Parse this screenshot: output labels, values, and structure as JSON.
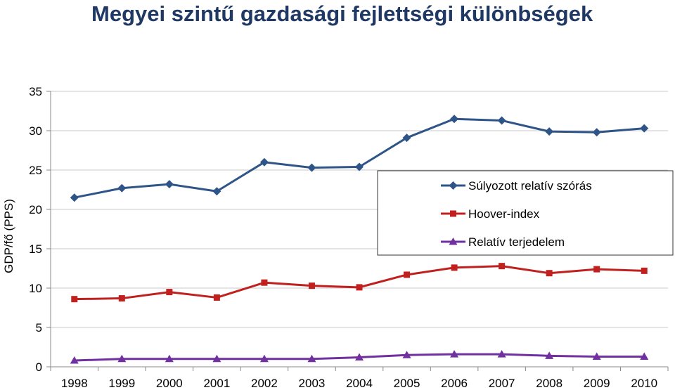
{
  "slide": {
    "title": "Megyei szintű gazdasági fejlettségi különbségek"
  },
  "chart_data": {
    "type": "line",
    "title": "",
    "xlabel": "",
    "ylabel": "GDP/fő (PPS)",
    "ylim": [
      0,
      35
    ],
    "yticks": [
      "0",
      "5",
      "10",
      "15",
      "20",
      "25",
      "30",
      "35"
    ],
    "categories": [
      "1998",
      "1999",
      "2000",
      "2001",
      "2002",
      "2003",
      "2004",
      "2005",
      "2006",
      "2007",
      "2008",
      "2009",
      "2010"
    ],
    "grid": true,
    "legend_placement": "right",
    "series": [
      {
        "name": "Súlyozott relatív szórás",
        "color": "#2f5588",
        "marker": "diamond",
        "values": [
          21.5,
          22.7,
          23.2,
          22.3,
          26.0,
          25.3,
          25.4,
          29.1,
          31.5,
          31.3,
          29.9,
          29.8,
          30.3
        ]
      },
      {
        "name": "Hoover-index",
        "color": "#c0201e",
        "marker": "square",
        "values": [
          8.6,
          8.7,
          9.5,
          8.8,
          10.7,
          10.3,
          10.1,
          11.7,
          12.6,
          12.8,
          11.9,
          12.4,
          12.2
        ]
      },
      {
        "name": "Relatív terjedelem",
        "color": "#7030a0",
        "marker": "triangle",
        "values": [
          0.8,
          1.0,
          1.0,
          1.0,
          1.0,
          1.0,
          1.2,
          1.5,
          1.6,
          1.6,
          1.4,
          1.3,
          1.3
        ]
      }
    ]
  }
}
